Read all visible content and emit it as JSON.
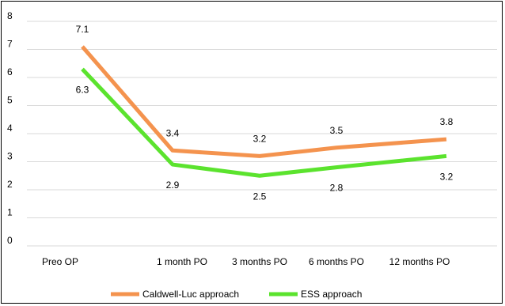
{
  "chart_data": {
    "type": "line",
    "categories": [
      "Preo OP",
      "1 month PO",
      "3 months PO",
      "6 months PO",
      "12 months PO"
    ],
    "series": [
      {
        "name": "Caldwell-Luc approach",
        "values": [
          7.1,
          3.4,
          3.2,
          3.5,
          3.8
        ],
        "color": "#F4934E"
      },
      {
        "name": "ESS approach",
        "values": [
          6.3,
          2.9,
          2.5,
          2.8,
          3.2
        ],
        "color": "#5BE32E"
      }
    ],
    "y_ticks": [
      "0",
      "1",
      "2",
      "3",
      "4",
      "5",
      "6",
      "7",
      "8"
    ],
    "ylim": [
      0,
      8
    ],
    "grid": true,
    "legend_position": "bottom",
    "title": "",
    "xlabel": "",
    "ylabel": ""
  }
}
